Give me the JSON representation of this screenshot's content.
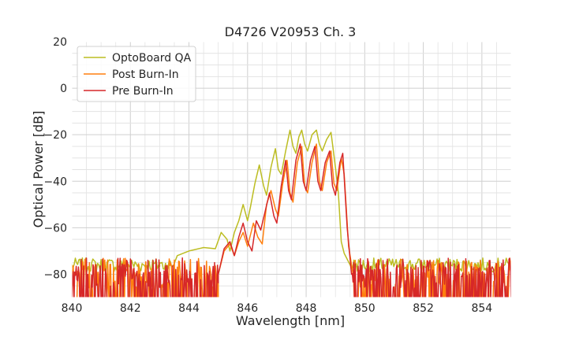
{
  "chart_data": {
    "type": "line",
    "title": "D4726 V20953 Ch. 3",
    "xlabel": "Wavelength [nm]",
    "ylabel": "Optical Power [dB]",
    "xlim": [
      840,
      855
    ],
    "ylim": [
      -90,
      20
    ],
    "xticks": [
      840,
      842,
      844,
      846,
      848,
      850,
      852,
      854
    ],
    "yticks": [
      -80,
      -60,
      -40,
      -20,
      0,
      20
    ],
    "x_minor_step": 0.5,
    "y_minor_step": 5,
    "grid": true,
    "legend_position": "top-left",
    "noise_floor": {
      "x_start": 840,
      "x_end": 855,
      "band": [
        -90,
        -72
      ]
    },
    "series": [
      {
        "name": "OptoBoard QA",
        "color": "#bcbd22",
        "points": [
          [
            840.0,
            -76
          ],
          [
            842.0,
            -76
          ],
          [
            843.0,
            -75
          ],
          [
            843.6,
            -72
          ],
          [
            844.0,
            -70
          ],
          [
            844.5,
            -68.5
          ],
          [
            844.9,
            -69
          ],
          [
            845.1,
            -62
          ],
          [
            845.3,
            -65
          ],
          [
            845.4,
            -70
          ],
          [
            845.55,
            -62
          ],
          [
            845.7,
            -57
          ],
          [
            845.85,
            -50
          ],
          [
            846.0,
            -57
          ],
          [
            846.1,
            -51
          ],
          [
            846.25,
            -41
          ],
          [
            846.4,
            -33
          ],
          [
            846.55,
            -42
          ],
          [
            846.65,
            -46
          ],
          [
            846.8,
            -34
          ],
          [
            846.95,
            -26
          ],
          [
            847.05,
            -35
          ],
          [
            847.15,
            -37
          ],
          [
            847.3,
            -27
          ],
          [
            847.45,
            -18
          ],
          [
            847.55,
            -25
          ],
          [
            847.65,
            -28
          ],
          [
            847.75,
            -21
          ],
          [
            847.85,
            -18
          ],
          [
            847.95,
            -24
          ],
          [
            848.05,
            -27
          ],
          [
            848.2,
            -20
          ],
          [
            848.35,
            -18
          ],
          [
            848.45,
            -24
          ],
          [
            848.55,
            -27
          ],
          [
            848.7,
            -22
          ],
          [
            848.85,
            -19
          ],
          [
            849.0,
            -34
          ],
          [
            849.1,
            -45
          ],
          [
            849.2,
            -66
          ],
          [
            849.3,
            -71
          ],
          [
            849.5,
            -76
          ],
          [
            850.5,
            -76
          ],
          [
            852.0,
            -76
          ],
          [
            855.0,
            -76
          ]
        ]
      },
      {
        "name": "Post Burn-In",
        "color": "#ff7f0e",
        "points": [
          [
            845.0,
            -80
          ],
          [
            845.2,
            -70
          ],
          [
            845.4,
            -67
          ],
          [
            845.55,
            -72
          ],
          [
            845.7,
            -66
          ],
          [
            845.85,
            -62
          ],
          [
            846.0,
            -68
          ],
          [
            846.2,
            -58
          ],
          [
            846.35,
            -64
          ],
          [
            846.5,
            -67
          ],
          [
            846.65,
            -50
          ],
          [
            846.8,
            -44
          ],
          [
            846.95,
            -52
          ],
          [
            847.05,
            -55
          ],
          [
            847.2,
            -41
          ],
          [
            847.35,
            -31
          ],
          [
            847.45,
            -45
          ],
          [
            847.55,
            -49
          ],
          [
            847.7,
            -32
          ],
          [
            847.85,
            -25
          ],
          [
            847.95,
            -42
          ],
          [
            848.05,
            -45
          ],
          [
            848.2,
            -32
          ],
          [
            848.35,
            -24
          ],
          [
            848.45,
            -40
          ],
          [
            848.55,
            -44
          ],
          [
            848.7,
            -32
          ],
          [
            848.85,
            -27
          ],
          [
            848.95,
            -41
          ],
          [
            849.05,
            -44
          ],
          [
            849.2,
            -30
          ],
          [
            849.3,
            -37
          ],
          [
            849.45,
            -68
          ],
          [
            849.6,
            -80
          ]
        ]
      },
      {
        "name": "Pre Burn-In",
        "color": "#d62728",
        "points": [
          [
            845.0,
            -80
          ],
          [
            845.2,
            -69
          ],
          [
            845.4,
            -66
          ],
          [
            845.55,
            -72
          ],
          [
            845.7,
            -64
          ],
          [
            845.85,
            -58
          ],
          [
            846.0,
            -66
          ],
          [
            846.15,
            -70
          ],
          [
            846.3,
            -57
          ],
          [
            846.45,
            -61
          ],
          [
            846.6,
            -53
          ],
          [
            846.75,
            -45
          ],
          [
            846.9,
            -55
          ],
          [
            847.0,
            -58
          ],
          [
            847.15,
            -42
          ],
          [
            847.3,
            -31
          ],
          [
            847.4,
            -44
          ],
          [
            847.5,
            -48
          ],
          [
            847.65,
            -31
          ],
          [
            847.8,
            -24
          ],
          [
            847.9,
            -40
          ],
          [
            848.0,
            -44
          ],
          [
            848.15,
            -31
          ],
          [
            848.3,
            -25
          ],
          [
            848.4,
            -40
          ],
          [
            848.5,
            -44
          ],
          [
            848.65,
            -32
          ],
          [
            848.8,
            -27
          ],
          [
            848.9,
            -42
          ],
          [
            849.0,
            -46
          ],
          [
            849.15,
            -32
          ],
          [
            849.25,
            -28
          ],
          [
            849.4,
            -60
          ],
          [
            849.55,
            -80
          ]
        ]
      }
    ]
  }
}
